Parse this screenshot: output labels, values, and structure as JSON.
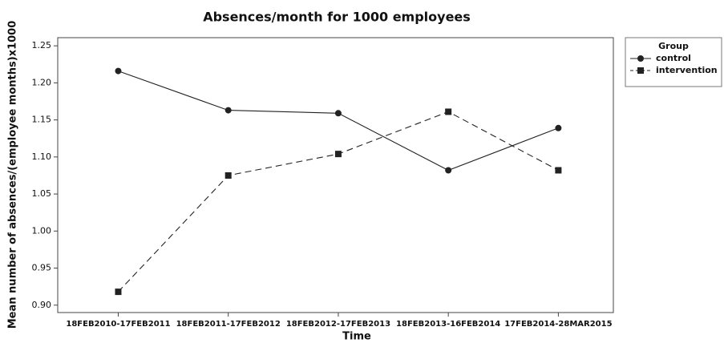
{
  "chart_data": {
    "type": "line",
    "title": "Absences/month for 1000 employees",
    "x_label": "Time",
    "y_label": "Mean number of absences/(employee months)x1000",
    "categories": [
      "18FEB2010-17FEB2011",
      "18FEB2011-17FEB2012",
      "18FEB2012-17FEB2013",
      "18FEB2013-16FEB2014",
      "17FEB2014-28MAR2015"
    ],
    "series": [
      {
        "name": "control",
        "color": "#222222",
        "linestyle": "solid",
        "marker": "circle",
        "values": [
          1.216,
          1.163,
          1.159,
          1.082,
          1.139
        ]
      },
      {
        "name": "intervention",
        "color": "#222222",
        "linestyle": "dashed",
        "marker": "square",
        "values": [
          0.918,
          1.075,
          1.104,
          1.161,
          1.082
        ]
      }
    ],
    "ylim": [
      0.89,
      1.261
    ],
    "yticks": [
      {
        "value": 0.9,
        "label": "0.90"
      },
      0.95,
      {
        "value": 1.0,
        "label": "1.00"
      },
      1.05,
      {
        "value": 1.1,
        "label": "1.10"
      },
      1.15,
      {
        "value": 1.2,
        "label": "1.20"
      },
      1.25
    ],
    "legend": {
      "title": "Group",
      "position": "right"
    }
  }
}
